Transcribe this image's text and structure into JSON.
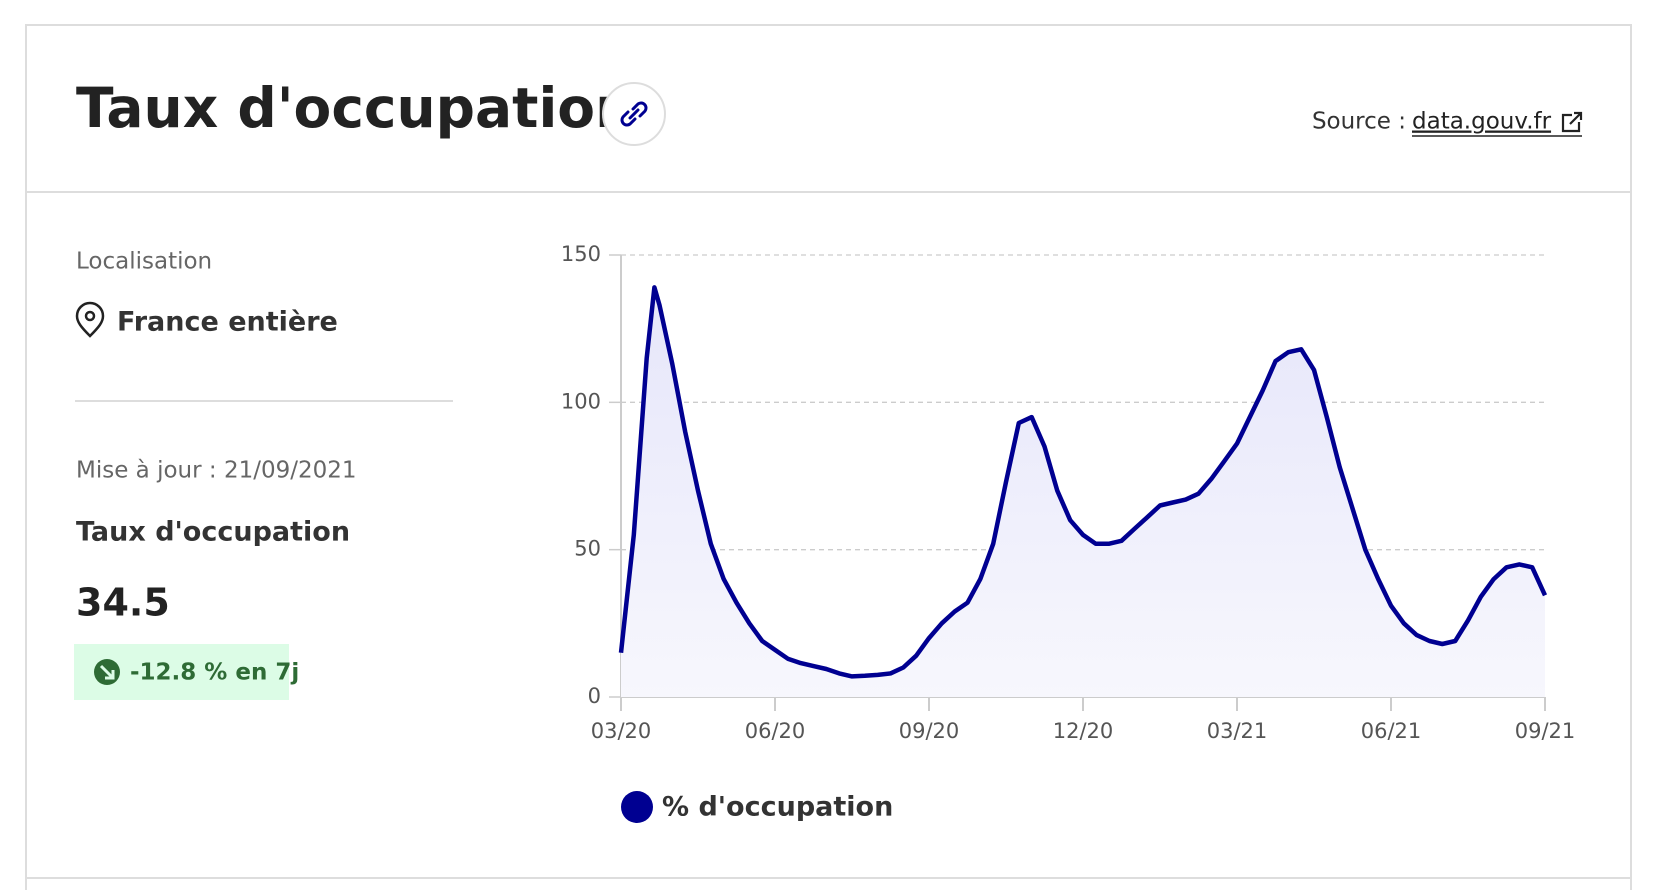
{
  "header": {
    "title": "Taux d'occupation",
    "source_label": "Source :",
    "source_link": "data.gouv.fr"
  },
  "sidebar": {
    "location_label": "Localisation",
    "location": "France entière",
    "updated": "Mise à jour : 21/09/2021",
    "indicator": "Taux d'occupation",
    "value": "34.5",
    "change": "-12.8 % en 7j"
  },
  "chart_data": {
    "type": "line",
    "x": [
      0,
      0.25,
      0.5,
      0.65,
      0.75,
      1,
      1.25,
      1.5,
      1.75,
      2,
      2.25,
      2.5,
      2.75,
      3,
      3.25,
      3.5,
      3.75,
      4,
      4.25,
      4.5,
      4.75,
      5,
      5.25,
      5.5,
      5.75,
      6,
      6.25,
      6.5,
      6.75,
      7,
      7.25,
      7.5,
      7.75,
      8,
      8.25,
      8.5,
      8.75,
      9,
      9.25,
      9.5,
      9.75,
      10,
      10.25,
      10.5,
      10.75,
      11,
      11.25,
      11.5,
      11.75,
      12,
      12.25,
      12.5,
      12.75,
      13,
      13.25,
      13.5,
      13.75,
      14,
      14.25,
      14.5,
      14.75,
      15,
      15.25,
      15.5,
      15.75,
      16,
      16.25,
      16.5,
      16.75,
      17,
      17.25,
      17.5,
      17.75,
      18
    ],
    "series": [
      {
        "name": "% d'occupation",
        "color": "#000091",
        "values": [
          15,
          55,
          115,
          139,
          133,
          113,
          90,
          70,
          52,
          40,
          32,
          25,
          19,
          16,
          13,
          11.5,
          10.5,
          9.5,
          8,
          7,
          7.2,
          7.5,
          8,
          10,
          14,
          20,
          25,
          29,
          32,
          40,
          52,
          73,
          93,
          95,
          85,
          70,
          60,
          55,
          52,
          52,
          53,
          57,
          61,
          65,
          66,
          67,
          69,
          74,
          80,
          86,
          95,
          104,
          114,
          117,
          118,
          111,
          95,
          78,
          64,
          50,
          40,
          31,
          25,
          21,
          19,
          18,
          19,
          26,
          34,
          40,
          44,
          45,
          44,
          34.5
        ]
      }
    ],
    "xlim": [
      0,
      18
    ],
    "xticks": [
      {
        "value": 0,
        "label": "03/20"
      },
      {
        "value": 3,
        "label": "06/20"
      },
      {
        "value": 6,
        "label": "09/20"
      },
      {
        "value": 9,
        "label": "12/20"
      },
      {
        "value": 12,
        "label": "03/21"
      },
      {
        "value": 15,
        "label": "06/21"
      },
      {
        "value": 18,
        "label": "09/21"
      }
    ],
    "ylim": [
      0,
      150
    ],
    "yticks": [
      0,
      50,
      100,
      150
    ],
    "grid": true
  }
}
